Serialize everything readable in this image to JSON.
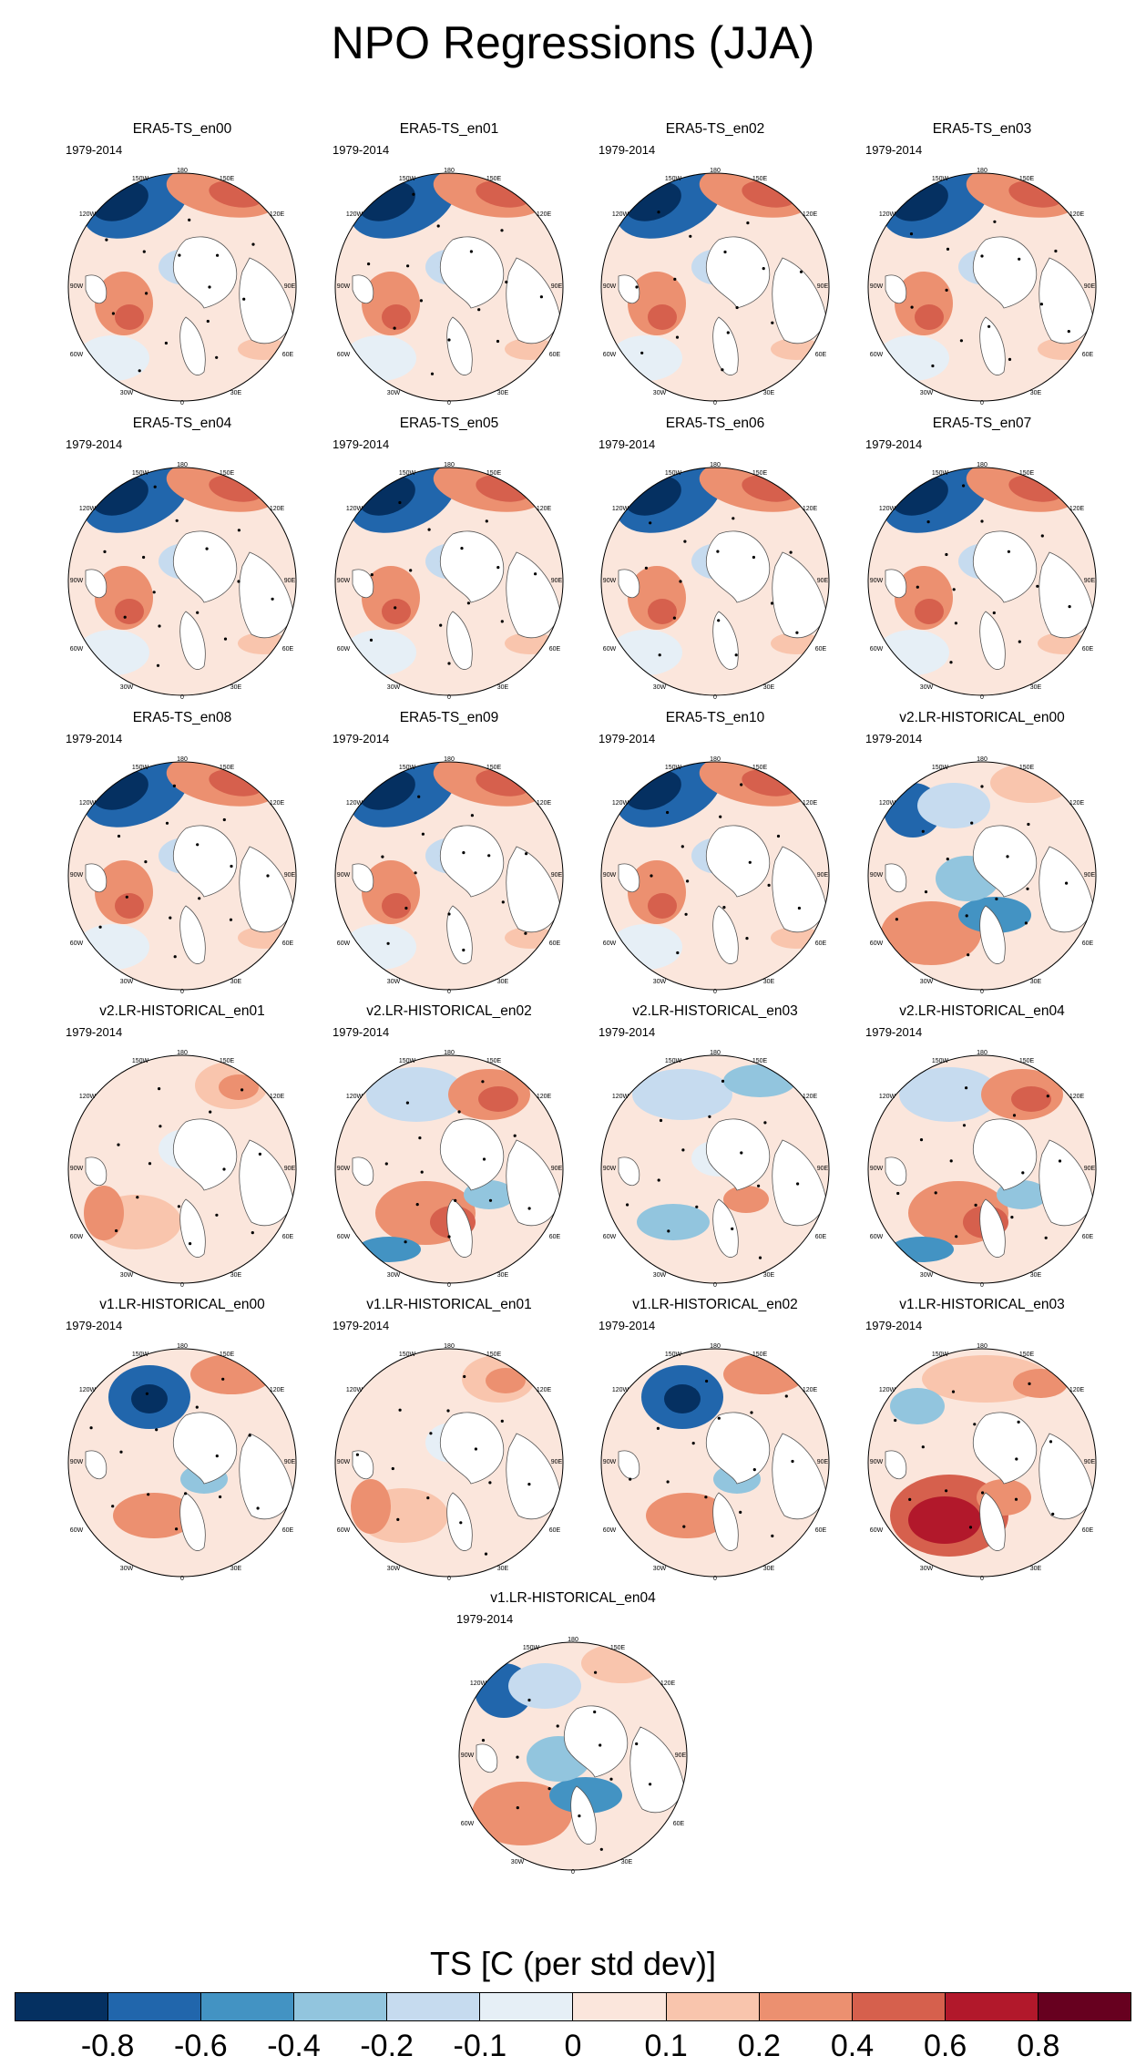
{
  "title": "NPO Regressions (JJA)",
  "period": "1979-2014",
  "map_labels": {
    "north": "180",
    "ne1": "150E",
    "ne2": "120E",
    "e": "90E",
    "se1": "60E",
    "se2": "30E",
    "south": "0",
    "sw2": "30W",
    "sw1": "60W",
    "w": "90W",
    "nw2": "120W",
    "nw1": "150W"
  },
  "panels": [
    {
      "label": "ERA5-TS_en00",
      "style": "era"
    },
    {
      "label": "ERA5-TS_en01",
      "style": "era"
    },
    {
      "label": "ERA5-TS_en02",
      "style": "era"
    },
    {
      "label": "ERA5-TS_en03",
      "style": "era"
    },
    {
      "label": "ERA5-TS_en04",
      "style": "era"
    },
    {
      "label": "ERA5-TS_en05",
      "style": "era"
    },
    {
      "label": "ERA5-TS_en06",
      "style": "era"
    },
    {
      "label": "ERA5-TS_en07",
      "style": "era"
    },
    {
      "label": "ERA5-TS_en08",
      "style": "era"
    },
    {
      "label": "ERA5-TS_en09",
      "style": "era"
    },
    {
      "label": "ERA5-TS_en10",
      "style": "era"
    },
    {
      "label": "v2.LR-HISTORICAL_en00",
      "style": "cold_atlantic"
    },
    {
      "label": "v2.LR-HISTORICAL_en01",
      "style": "weak_warm"
    },
    {
      "label": "v2.LR-HISTORICAL_en02",
      "style": "warm_atlantic"
    },
    {
      "label": "v2.LR-HISTORICAL_en03",
      "style": "weak_cold"
    },
    {
      "label": "v2.LR-HISTORICAL_en04",
      "style": "warm_atlantic"
    },
    {
      "label": "v1.LR-HISTORICAL_en00",
      "style": "cold_pacific"
    },
    {
      "label": "v1.LR-HISTORICAL_en01",
      "style": "weak_warm"
    },
    {
      "label": "v1.LR-HISTORICAL_en02",
      "style": "cold_pacific"
    },
    {
      "label": "v1.LR-HISTORICAL_en03",
      "style": "hot_atlantic"
    },
    {
      "label": "v1.LR-HISTORICAL_en04",
      "style": "cold_atlantic"
    }
  ],
  "colorbar": {
    "title": "TS [C (per std dev)]",
    "colors": [
      "#053061",
      "#2166ac",
      "#4393c3",
      "#92c5de",
      "#c6dbef",
      "#e6eff6",
      "#fbe6dc",
      "#f9c5ad",
      "#ec9070",
      "#d6604d",
      "#b2182b",
      "#67001f"
    ],
    "ticks": [
      "-0.8",
      "-0.6",
      "-0.4",
      "-0.2",
      "-0.1",
      "0",
      "0.1",
      "0.2",
      "0.4",
      "0.6",
      "0.8"
    ]
  }
}
